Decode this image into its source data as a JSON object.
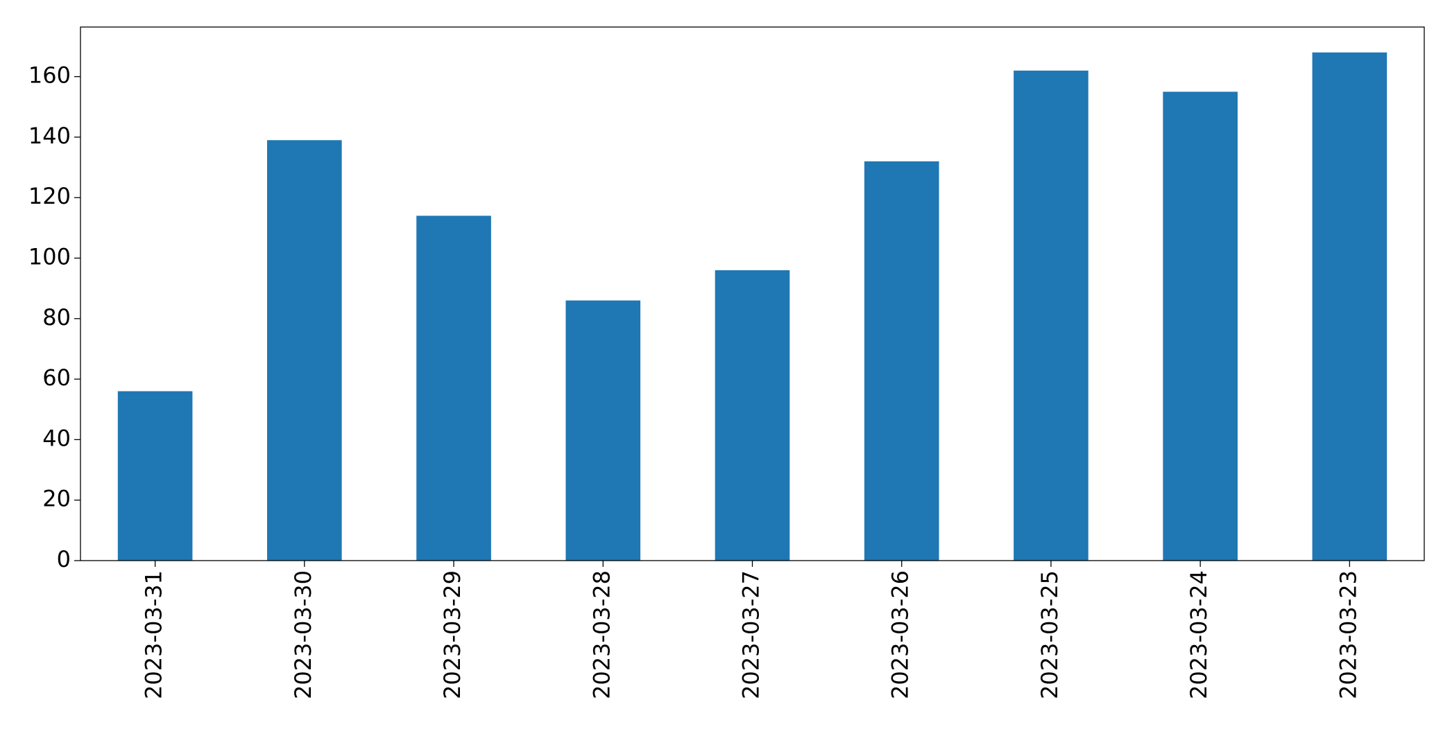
{
  "chart_data": {
    "type": "bar",
    "categories": [
      "2023-03-31",
      "2023-03-30",
      "2023-03-29",
      "2023-03-28",
      "2023-03-27",
      "2023-03-26",
      "2023-03-25",
      "2023-03-24",
      "2023-03-23"
    ],
    "values": [
      56,
      139,
      114,
      86,
      96,
      132,
      162,
      155,
      168
    ],
    "color": "#1f77b4",
    "ylim": [
      0,
      176.4
    ],
    "yticks": [
      0,
      20,
      40,
      60,
      80,
      100,
      120,
      140,
      160
    ],
    "grid": false
  }
}
